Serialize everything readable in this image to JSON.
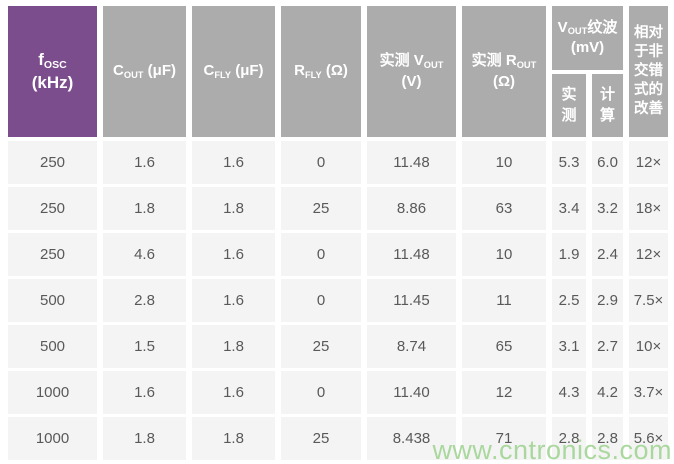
{
  "chart_data": {
    "type": "table",
    "title": "",
    "columns": [
      "fOSC (kHz)",
      "COUT (μF)",
      "CFLY (μF)",
      "RFLY (Ω)",
      "实测 VOUT (V)",
      "实测 ROUT (Ω)",
      "VOUT纹波 (mV) 实测",
      "VOUT纹波 (mV) 计算",
      "相对于非交错式的改善"
    ],
    "rows": [
      [
        "250",
        "1.6",
        "1.6",
        "0",
        "11.48",
        "10",
        "5.3",
        "6.0",
        "12×"
      ],
      [
        "250",
        "1.8",
        "1.8",
        "25",
        "8.86",
        "63",
        "3.4",
        "3.2",
        "18×"
      ],
      [
        "250",
        "4.6",
        "1.6",
        "0",
        "11.48",
        "10",
        "1.9",
        "2.4",
        "12×"
      ],
      [
        "500",
        "2.8",
        "1.6",
        "0",
        "11.45",
        "11",
        "2.5",
        "2.9",
        "7.5×"
      ],
      [
        "500",
        "1.5",
        "1.8",
        "25",
        "8.74",
        "65",
        "3.1",
        "2.7",
        "10×"
      ],
      [
        "1000",
        "1.6",
        "1.6",
        "0",
        "11.40",
        "12",
        "4.3",
        "4.2",
        "3.7×"
      ],
      [
        "1000",
        "1.8",
        "1.8",
        "25",
        "8.438",
        "71",
        "2.8",
        "2.8",
        "5.6×"
      ]
    ]
  },
  "headers": {
    "fosc": {
      "main": "f",
      "sub": "OSC",
      "unit": "(kHz)"
    },
    "cout": {
      "main": "C",
      "sub": "OUT",
      "unit": " (μF)"
    },
    "cfly": {
      "main": "C",
      "sub": "FLY",
      "unit": " (μF)"
    },
    "rfly": {
      "main": "R",
      "sub": "FLY",
      "unit": " (Ω)"
    },
    "vout_meas": {
      "prefix": "实测 V",
      "sub": "OUT",
      "unit": "(V)"
    },
    "rout_meas": {
      "prefix": "实测 R",
      "sub": "OUT",
      "unit": "(Ω)"
    },
    "ripple": {
      "prefix": "V",
      "sub": "OUT",
      "rest": "纹波 (mV)"
    },
    "ripple_meas": "实\n测",
    "ripple_calc": "计\n算",
    "improvement": "相对\n于非\n交错\n式的\n改善"
  },
  "watermark": "www.cntronics.com",
  "colors": {
    "header_purple": "#7c4d8c",
    "header_gray": "#acacac",
    "row_background": "#f4f4f4",
    "data_text": "#595959",
    "header_text": "#ffffff",
    "watermark_green": "#a7d69a"
  }
}
